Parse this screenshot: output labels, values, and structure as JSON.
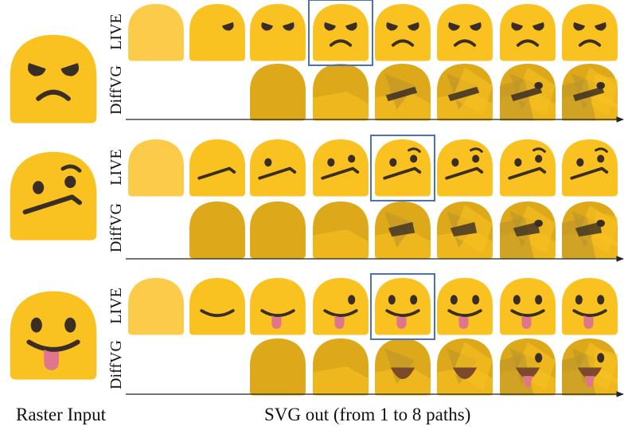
{
  "figure": {
    "row_labels": {
      "live": "LIVE",
      "diffvg": "DiffVG"
    },
    "caption_left": "Raster Input",
    "caption_right": "SVG out (from 1 to 8 paths)",
    "emojis": [
      {
        "name": "angry-face"
      },
      {
        "name": "smirk-face"
      },
      {
        "name": "tongue-face"
      }
    ],
    "path_counts": [
      1,
      2,
      3,
      4,
      5,
      6,
      7,
      8
    ],
    "highlight_path_count": {
      "angry-face": 4,
      "smirk-face": 5,
      "tongue-face": 5
    }
  },
  "colors": {
    "face_full": "#F9C221",
    "face_pale": "#FCCB4A",
    "diffvg_face": "#DDA91A",
    "diffvg_shade": "#B8932B",
    "feature": "#3A2E24",
    "tongue": "#E0758E",
    "mouth_open": "#7A4A2A",
    "highlight_box": "#4A72B8",
    "axis": "#222222"
  }
}
